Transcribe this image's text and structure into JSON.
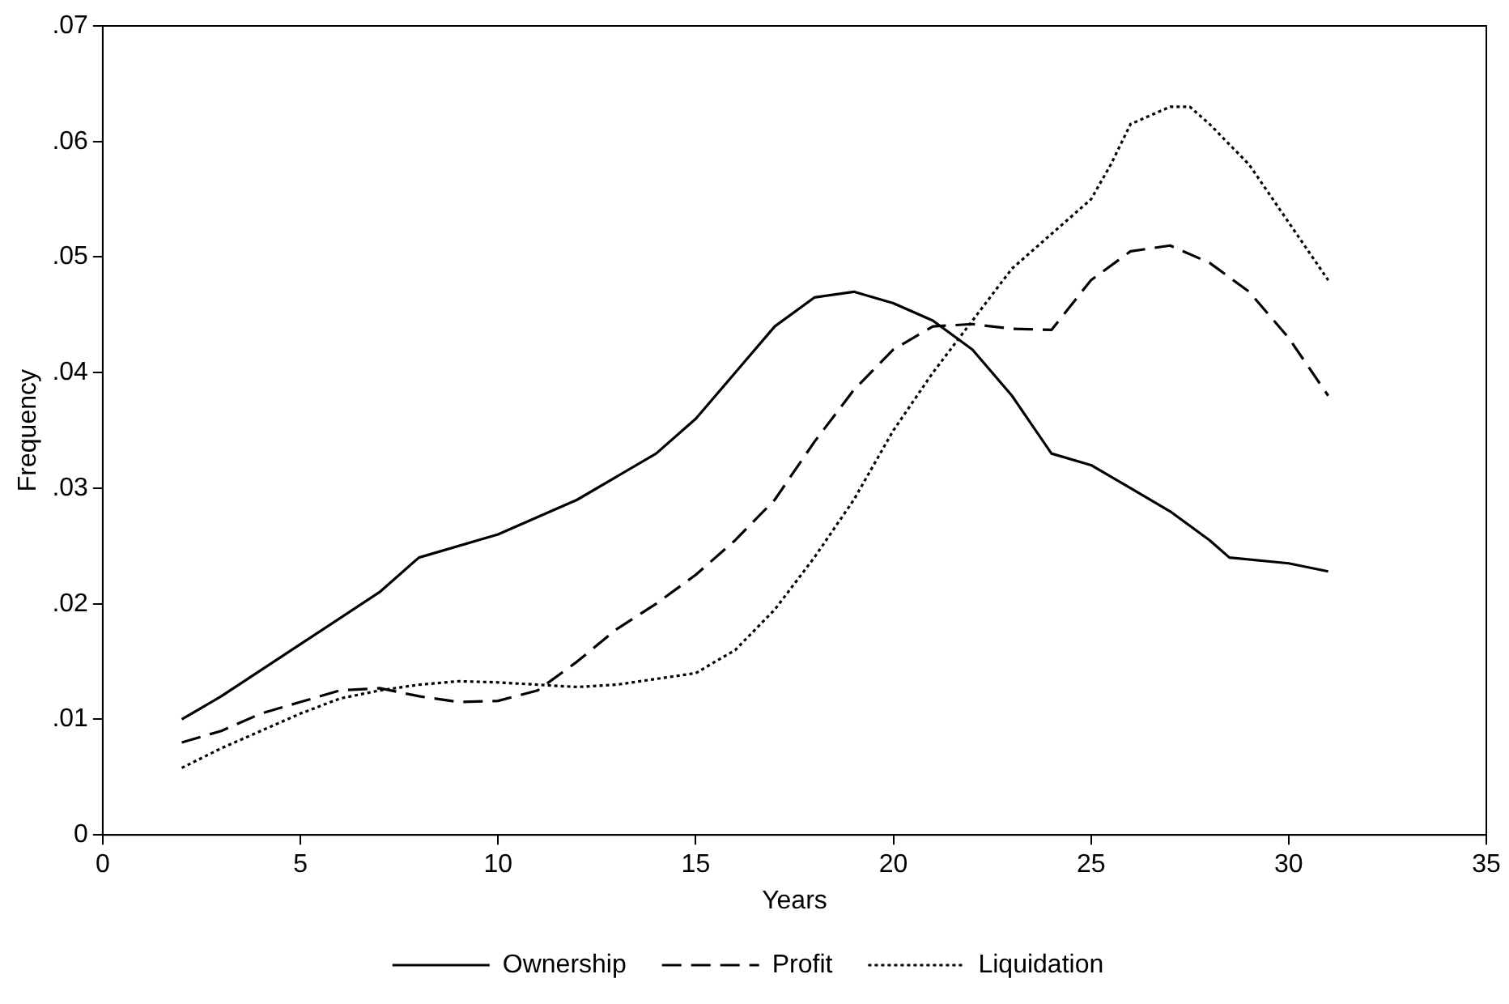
{
  "chart_data": {
    "type": "line",
    "xlabel": "Years",
    "ylabel": "Frequency",
    "xlim": [
      0,
      35
    ],
    "xticks": [
      0,
      5,
      10,
      15,
      20,
      25,
      30,
      35
    ],
    "ylim": [
      0,
      0.07
    ],
    "yticks": [
      0,
      {
        "value": 0.01,
        "label": ".01"
      },
      {
        "value": 0.02,
        "label": ".02"
      },
      {
        "value": 0.03,
        "label": ".03"
      },
      {
        "value": 0.04,
        "label": ".04"
      },
      {
        "value": 0.05,
        "label": ".05"
      },
      {
        "value": 0.06,
        "label": ".06"
      },
      {
        "value": 0.07,
        "label": ".07"
      }
    ],
    "grid": false,
    "legend": "bottom",
    "marker": "none",
    "series": [
      {
        "name": "Ownership",
        "color": "#000000",
        "line_style": "solid",
        "x": [
          2,
          3,
          5,
          7,
          8,
          10,
          12,
          14,
          15,
          16,
          17,
          18,
          19,
          20,
          21,
          22,
          23,
          24,
          25,
          26,
          27,
          28,
          28.5,
          30,
          31
        ],
        "values": [
          0.01,
          0.012,
          0.0165,
          0.021,
          0.024,
          0.026,
          0.029,
          0.033,
          0.036,
          0.04,
          0.044,
          0.0465,
          0.047,
          0.046,
          0.0445,
          0.042,
          0.038,
          0.033,
          0.032,
          0.03,
          0.028,
          0.0255,
          0.024,
          0.0235,
          0.0228
        ]
      },
      {
        "name": "Profit",
        "color": "#000000",
        "line_style": "dashed",
        "x": [
          2,
          3,
          4,
          5,
          6,
          7,
          8,
          9,
          10,
          11,
          12,
          13,
          14,
          15,
          16,
          17,
          18,
          19,
          20,
          21,
          22,
          23,
          24,
          25,
          26,
          27,
          28,
          29,
          30,
          31
        ],
        "values": [
          0.008,
          0.009,
          0.0105,
          0.0115,
          0.0125,
          0.0127,
          0.012,
          0.0115,
          0.0116,
          0.0125,
          0.015,
          0.0178,
          0.02,
          0.0225,
          0.0255,
          0.029,
          0.034,
          0.0385,
          0.042,
          0.044,
          0.0442,
          0.0438,
          0.0437,
          0.048,
          0.0505,
          0.051,
          0.0495,
          0.047,
          0.043,
          0.038
        ]
      },
      {
        "name": "Liquidation",
        "color": "#000000",
        "line_style": "dotted",
        "x": [
          2,
          3,
          4,
          5,
          6,
          7,
          8,
          9,
          10,
          11,
          12,
          13,
          14,
          15,
          16,
          17,
          18,
          19,
          20,
          21,
          22,
          23,
          24,
          25,
          25.5,
          26,
          27,
          27.5,
          28,
          29,
          30,
          31
        ],
        "values": [
          0.0058,
          0.0075,
          0.009,
          0.0105,
          0.0118,
          0.0125,
          0.013,
          0.0133,
          0.0132,
          0.013,
          0.0128,
          0.013,
          0.0135,
          0.014,
          0.016,
          0.0195,
          0.024,
          0.029,
          0.035,
          0.04,
          0.0445,
          0.049,
          0.052,
          0.055,
          0.058,
          0.0615,
          0.063,
          0.063,
          0.0615,
          0.058,
          0.053,
          0.048
        ]
      }
    ]
  }
}
